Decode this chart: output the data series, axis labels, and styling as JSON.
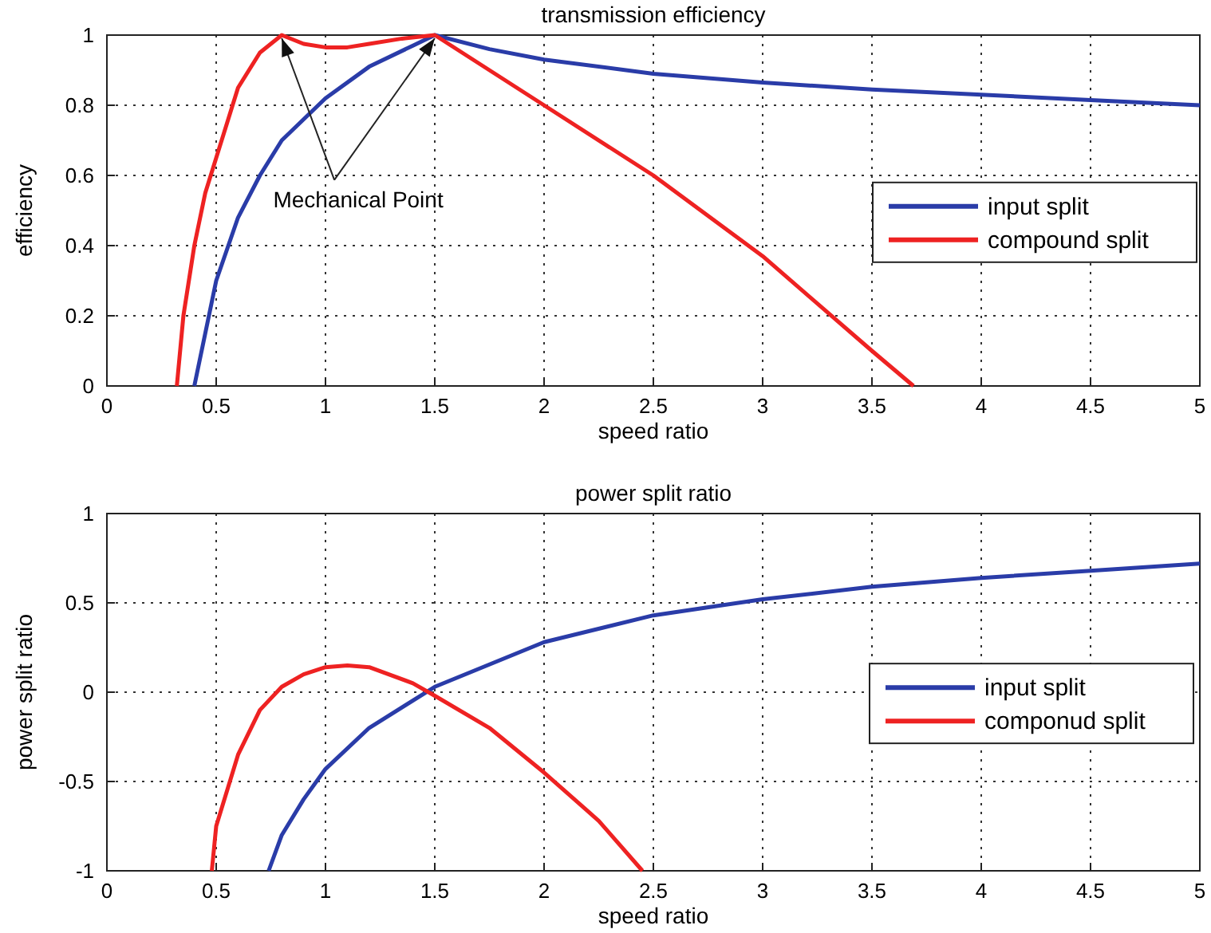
{
  "chart_data": [
    {
      "type": "line",
      "title": "transmission efficiency",
      "xlabel": "speed ratio",
      "ylabel": "efficiency",
      "xlim": [
        0,
        5
      ],
      "ylim": [
        0,
        1
      ],
      "xticks": [
        0,
        0.5,
        1,
        1.5,
        2,
        2.5,
        3,
        3.5,
        4,
        4.5,
        5
      ],
      "yticks": [
        0,
        0.2,
        0.4,
        0.6,
        0.8,
        1
      ],
      "grid": true,
      "legend": "right",
      "line_style": "solid",
      "marker": "none",
      "annotations": [
        {
          "text": "Mechanical Point",
          "x": 0.8,
          "y": 1
        }
      ],
      "series": [
        {
          "name": "input split",
          "color": "#2a3ca8",
          "x": [
            0.4,
            0.45,
            0.5,
            0.6,
            0.7,
            0.8,
            1.0,
            1.2,
            1.4,
            1.5,
            1.75,
            2,
            2.5,
            3,
            3.5,
            4,
            4.5,
            5
          ],
          "values": [
            0,
            0.15,
            0.3,
            0.48,
            0.6,
            0.7,
            0.82,
            0.91,
            0.97,
            1.0,
            0.96,
            0.93,
            0.89,
            0.865,
            0.845,
            0.83,
            0.815,
            0.8
          ]
        },
        {
          "name": "compound split",
          "color": "#ee2222",
          "x": [
            0.32,
            0.35,
            0.4,
            0.45,
            0.5,
            0.55,
            0.6,
            0.7,
            0.8,
            0.9,
            1.0,
            1.1,
            1.2,
            1.35,
            1.5,
            2,
            2.5,
            3,
            3.5,
            3.69
          ],
          "values": [
            0,
            0.2,
            0.4,
            0.55,
            0.65,
            0.75,
            0.85,
            0.95,
            1.0,
            0.975,
            0.965,
            0.965,
            0.975,
            0.99,
            1.0,
            0.8,
            0.6,
            0.37,
            0.1,
            0
          ]
        }
      ]
    },
    {
      "type": "line",
      "title": "power split ratio",
      "xlabel": "speed ratio",
      "ylabel": "power split ratio",
      "xlim": [
        0,
        5
      ],
      "ylim": [
        -1,
        1
      ],
      "xticks": [
        0,
        0.5,
        1,
        1.5,
        2,
        2.5,
        3,
        3.5,
        4,
        4.5,
        5
      ],
      "yticks": [
        -1,
        -0.5,
        0,
        0.5,
        1
      ],
      "grid": true,
      "legend": "right",
      "line_style": "solid",
      "marker": "none",
      "series": [
        {
          "name": "input split",
          "color": "#2a3ca8",
          "x": [
            0.74,
            0.8,
            0.9,
            1.0,
            1.2,
            1.5,
            2,
            2.5,
            3,
            3.5,
            4,
            4.5,
            5
          ],
          "values": [
            -1,
            -0.8,
            -0.6,
            -0.43,
            -0.2,
            0.03,
            0.28,
            0.43,
            0.52,
            0.59,
            0.64,
            0.68,
            0.72
          ]
        },
        {
          "name": "componud split",
          "color": "#ee2222",
          "x": [
            0.48,
            0.5,
            0.6,
            0.7,
            0.8,
            0.9,
            1.0,
            1.1,
            1.2,
            1.4,
            1.5,
            1.75,
            2.0,
            2.25,
            2.45
          ],
          "values": [
            -1,
            -0.75,
            -0.35,
            -0.1,
            0.03,
            0.1,
            0.14,
            0.15,
            0.14,
            0.05,
            -0.02,
            -0.2,
            -0.45,
            -0.72,
            -1
          ]
        }
      ]
    }
  ]
}
